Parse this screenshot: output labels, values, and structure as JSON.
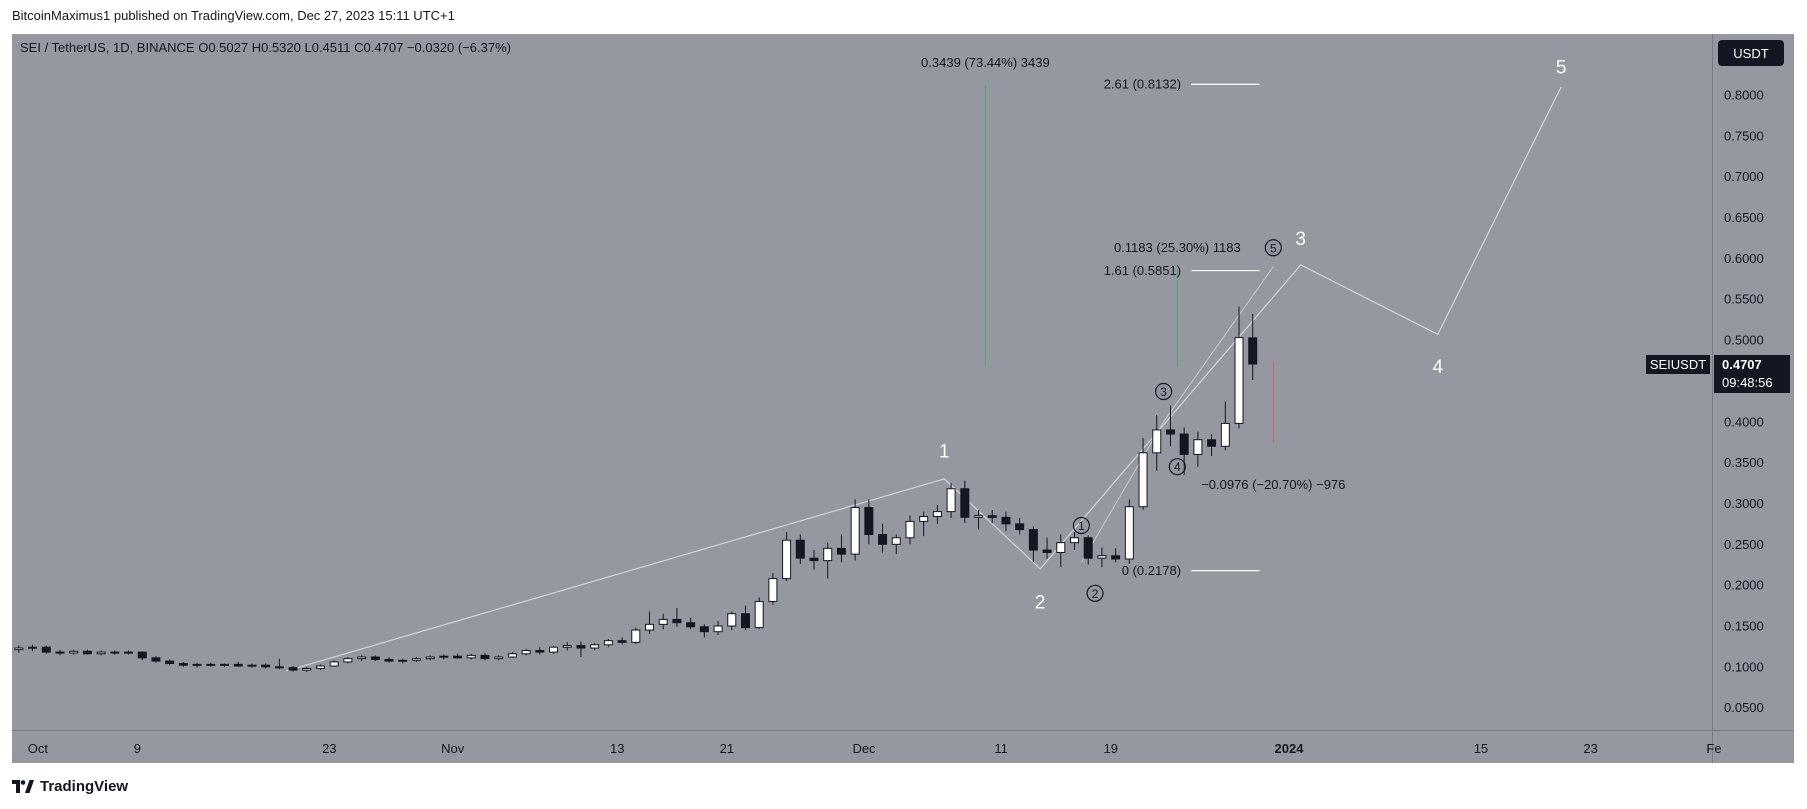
{
  "header": {
    "published_line": "BitcoinMaximus1 published on TradingView.com, Dec 27, 2023 15:11 UTC+1"
  },
  "footer": {
    "brand": "TradingView"
  },
  "colors": {
    "plot_bg": "#9598a1",
    "axis_bg": "#9598a1",
    "up_body": "#ffffff",
    "down_body": "#131722",
    "wick": "#131722",
    "wave_line": "#d1d4dc",
    "label_white": "#ffffff",
    "green_line": "#4caf50",
    "red_line": "#ef5350"
  },
  "chart_data": {
    "type": "candlestick",
    "title": "SEI / TetherUS, 1D, BINANCE",
    "symbol": "SEIUSDT",
    "currency": "USDT",
    "ohlc_legend": {
      "o_label": "O",
      "o": "0.5027",
      "h_label": "H",
      "h": "0.5320",
      "l_label": "L",
      "l": "0.4511",
      "c_label": "C",
      "c": "0.4707",
      "change": "−0.0320 (−6.37%)"
    },
    "last_price": "0.4707",
    "countdown": "09:48:56",
    "y_axis": {
      "min": 0.03,
      "max": 0.86,
      "ticks": [
        "0.8000",
        "0.7500",
        "0.7000",
        "0.6500",
        "0.6000",
        "0.5500",
        "0.5000",
        "0.4000",
        "0.3500",
        "0.3000",
        "0.2500",
        "0.2000",
        "0.1500",
        "0.1000",
        "0.0500"
      ]
    },
    "x_axis": {
      "start": "2023-09-30",
      "end": "2024-02-01",
      "ticks": [
        {
          "label": "Oct",
          "date": "2023-10-01"
        },
        {
          "label": "9",
          "date": "2023-10-09"
        },
        {
          "label": "23",
          "date": "2023-10-23"
        },
        {
          "label": "Nov",
          "date": "2023-11-01"
        },
        {
          "label": "13",
          "date": "2023-11-13"
        },
        {
          "label": "21",
          "date": "2023-11-21"
        },
        {
          "label": "Dec",
          "date": "2023-12-01"
        },
        {
          "label": "11",
          "date": "2023-12-11"
        },
        {
          "label": "19",
          "date": "2023-12-19"
        },
        {
          "label": "2024",
          "date": "2024-01-01",
          "bold": true
        },
        {
          "label": "15",
          "date": "2024-01-15"
        },
        {
          "label": "23",
          "date": "2024-01-23"
        },
        {
          "label": "Fe",
          "date": "2024-02-01"
        }
      ]
    },
    "candles": [
      {
        "d": "2023-09-30",
        "o": 0.121,
        "h": 0.126,
        "l": 0.117,
        "c": 0.123
      },
      {
        "d": "2023-10-01",
        "o": 0.123,
        "h": 0.127,
        "l": 0.119,
        "c": 0.124
      },
      {
        "d": "2023-10-02",
        "o": 0.124,
        "h": 0.126,
        "l": 0.116,
        "c": 0.118
      },
      {
        "d": "2023-10-03",
        "o": 0.118,
        "h": 0.121,
        "l": 0.114,
        "c": 0.117
      },
      {
        "d": "2023-10-04",
        "o": 0.117,
        "h": 0.121,
        "l": 0.115,
        "c": 0.119
      },
      {
        "d": "2023-10-05",
        "o": 0.119,
        "h": 0.121,
        "l": 0.115,
        "c": 0.116
      },
      {
        "d": "2023-10-06",
        "o": 0.116,
        "h": 0.12,
        "l": 0.114,
        "c": 0.118
      },
      {
        "d": "2023-10-07",
        "o": 0.118,
        "h": 0.12,
        "l": 0.115,
        "c": 0.117
      },
      {
        "d": "2023-10-08",
        "o": 0.117,
        "h": 0.12,
        "l": 0.115,
        "c": 0.118
      },
      {
        "d": "2023-10-09",
        "o": 0.118,
        "h": 0.119,
        "l": 0.108,
        "c": 0.111
      },
      {
        "d": "2023-10-10",
        "o": 0.111,
        "h": 0.113,
        "l": 0.105,
        "c": 0.107
      },
      {
        "d": "2023-10-11",
        "o": 0.107,
        "h": 0.109,
        "l": 0.102,
        "c": 0.104
      },
      {
        "d": "2023-10-12",
        "o": 0.104,
        "h": 0.106,
        "l": 0.1,
        "c": 0.102
      },
      {
        "d": "2023-10-13",
        "o": 0.102,
        "h": 0.105,
        "l": 0.099,
        "c": 0.103
      },
      {
        "d": "2023-10-14",
        "o": 0.103,
        "h": 0.105,
        "l": 0.1,
        "c": 0.102
      },
      {
        "d": "2023-10-15",
        "o": 0.102,
        "h": 0.104,
        "l": 0.1,
        "c": 0.103
      },
      {
        "d": "2023-10-16",
        "o": 0.103,
        "h": 0.106,
        "l": 0.1,
        "c": 0.101
      },
      {
        "d": "2023-10-17",
        "o": 0.101,
        "h": 0.104,
        "l": 0.099,
        "c": 0.102
      },
      {
        "d": "2023-10-18",
        "o": 0.102,
        "h": 0.104,
        "l": 0.098,
        "c": 0.1
      },
      {
        "d": "2023-10-19",
        "o": 0.1,
        "h": 0.11,
        "l": 0.097,
        "c": 0.099
      },
      {
        "d": "2023-10-20",
        "o": 0.099,
        "h": 0.101,
        "l": 0.094,
        "c": 0.096
      },
      {
        "d": "2023-10-21",
        "o": 0.096,
        "h": 0.1,
        "l": 0.094,
        "c": 0.098
      },
      {
        "d": "2023-10-22",
        "o": 0.098,
        "h": 0.103,
        "l": 0.096,
        "c": 0.101
      },
      {
        "d": "2023-10-23",
        "o": 0.101,
        "h": 0.108,
        "l": 0.1,
        "c": 0.106
      },
      {
        "d": "2023-10-24",
        "o": 0.106,
        "h": 0.112,
        "l": 0.104,
        "c": 0.11
      },
      {
        "d": "2023-10-25",
        "o": 0.11,
        "h": 0.114,
        "l": 0.107,
        "c": 0.112
      },
      {
        "d": "2023-10-26",
        "o": 0.112,
        "h": 0.114,
        "l": 0.107,
        "c": 0.109
      },
      {
        "d": "2023-10-27",
        "o": 0.109,
        "h": 0.112,
        "l": 0.105,
        "c": 0.107
      },
      {
        "d": "2023-10-28",
        "o": 0.107,
        "h": 0.11,
        "l": 0.104,
        "c": 0.108
      },
      {
        "d": "2023-10-29",
        "o": 0.108,
        "h": 0.112,
        "l": 0.106,
        "c": 0.11
      },
      {
        "d": "2023-10-30",
        "o": 0.11,
        "h": 0.114,
        "l": 0.108,
        "c": 0.112
      },
      {
        "d": "2023-10-31",
        "o": 0.112,
        "h": 0.115,
        "l": 0.109,
        "c": 0.113
      },
      {
        "d": "2023-11-01",
        "o": 0.113,
        "h": 0.116,
        "l": 0.11,
        "c": 0.111
      },
      {
        "d": "2023-11-02",
        "o": 0.111,
        "h": 0.116,
        "l": 0.109,
        "c": 0.114
      },
      {
        "d": "2023-11-03",
        "o": 0.114,
        "h": 0.117,
        "l": 0.108,
        "c": 0.11
      },
      {
        "d": "2023-11-04",
        "o": 0.11,
        "h": 0.114,
        "l": 0.108,
        "c": 0.112
      },
      {
        "d": "2023-11-05",
        "o": 0.112,
        "h": 0.118,
        "l": 0.111,
        "c": 0.116
      },
      {
        "d": "2023-11-06",
        "o": 0.116,
        "h": 0.122,
        "l": 0.114,
        "c": 0.12
      },
      {
        "d": "2023-11-07",
        "o": 0.12,
        "h": 0.124,
        "l": 0.115,
        "c": 0.118
      },
      {
        "d": "2023-11-08",
        "o": 0.118,
        "h": 0.126,
        "l": 0.116,
        "c": 0.124
      },
      {
        "d": "2023-11-09",
        "o": 0.124,
        "h": 0.13,
        "l": 0.12,
        "c": 0.126
      },
      {
        "d": "2023-11-10",
        "o": 0.126,
        "h": 0.131,
        "l": 0.112,
        "c": 0.123
      },
      {
        "d": "2023-11-11",
        "o": 0.123,
        "h": 0.129,
        "l": 0.12,
        "c": 0.127
      },
      {
        "d": "2023-11-12",
        "o": 0.127,
        "h": 0.134,
        "l": 0.124,
        "c": 0.132
      },
      {
        "d": "2023-11-13",
        "o": 0.132,
        "h": 0.136,
        "l": 0.127,
        "c": 0.13
      },
      {
        "d": "2023-11-14",
        "o": 0.13,
        "h": 0.148,
        "l": 0.128,
        "c": 0.145
      },
      {
        "d": "2023-11-15",
        "o": 0.145,
        "h": 0.168,
        "l": 0.14,
        "c": 0.152
      },
      {
        "d": "2023-11-16",
        "o": 0.152,
        "h": 0.165,
        "l": 0.146,
        "c": 0.158
      },
      {
        "d": "2023-11-17",
        "o": 0.158,
        "h": 0.172,
        "l": 0.149,
        "c": 0.154
      },
      {
        "d": "2023-11-18",
        "o": 0.154,
        "h": 0.16,
        "l": 0.146,
        "c": 0.149
      },
      {
        "d": "2023-11-19",
        "o": 0.149,
        "h": 0.152,
        "l": 0.136,
        "c": 0.143
      },
      {
        "d": "2023-11-20",
        "o": 0.143,
        "h": 0.156,
        "l": 0.139,
        "c": 0.15
      },
      {
        "d": "2023-11-21",
        "o": 0.15,
        "h": 0.168,
        "l": 0.145,
        "c": 0.165
      },
      {
        "d": "2023-11-22",
        "o": 0.165,
        "h": 0.175,
        "l": 0.145,
        "c": 0.148
      },
      {
        "d": "2023-11-23",
        "o": 0.148,
        "h": 0.185,
        "l": 0.146,
        "c": 0.18
      },
      {
        "d": "2023-11-24",
        "o": 0.18,
        "h": 0.215,
        "l": 0.176,
        "c": 0.208
      },
      {
        "d": "2023-11-25",
        "o": 0.208,
        "h": 0.265,
        "l": 0.205,
        "c": 0.255
      },
      {
        "d": "2023-11-26",
        "o": 0.255,
        "h": 0.262,
        "l": 0.226,
        "c": 0.233
      },
      {
        "d": "2023-11-27",
        "o": 0.233,
        "h": 0.243,
        "l": 0.219,
        "c": 0.23
      },
      {
        "d": "2023-11-28",
        "o": 0.23,
        "h": 0.252,
        "l": 0.208,
        "c": 0.245
      },
      {
        "d": "2023-11-29",
        "o": 0.245,
        "h": 0.262,
        "l": 0.228,
        "c": 0.238
      },
      {
        "d": "2023-11-30",
        "o": 0.238,
        "h": 0.305,
        "l": 0.23,
        "c": 0.295
      },
      {
        "d": "2023-12-01",
        "o": 0.295,
        "h": 0.305,
        "l": 0.25,
        "c": 0.262
      },
      {
        "d": "2023-12-02",
        "o": 0.262,
        "h": 0.275,
        "l": 0.24,
        "c": 0.25
      },
      {
        "d": "2023-12-03",
        "o": 0.25,
        "h": 0.262,
        "l": 0.238,
        "c": 0.258
      },
      {
        "d": "2023-12-04",
        "o": 0.258,
        "h": 0.285,
        "l": 0.25,
        "c": 0.278
      },
      {
        "d": "2023-12-05",
        "o": 0.278,
        "h": 0.29,
        "l": 0.26,
        "c": 0.284
      },
      {
        "d": "2023-12-06",
        "o": 0.284,
        "h": 0.298,
        "l": 0.275,
        "c": 0.29
      },
      {
        "d": "2023-12-07",
        "o": 0.29,
        "h": 0.325,
        "l": 0.282,
        "c": 0.318
      },
      {
        "d": "2023-12-08",
        "o": 0.318,
        "h": 0.328,
        "l": 0.276,
        "c": 0.283
      },
      {
        "d": "2023-12-09",
        "o": 0.283,
        "h": 0.292,
        "l": 0.268,
        "c": 0.285
      },
      {
        "d": "2023-12-10",
        "o": 0.285,
        "h": 0.292,
        "l": 0.276,
        "c": 0.283
      },
      {
        "d": "2023-12-11",
        "o": 0.283,
        "h": 0.29,
        "l": 0.266,
        "c": 0.275
      },
      {
        "d": "2023-12-12",
        "o": 0.275,
        "h": 0.282,
        "l": 0.262,
        "c": 0.268
      },
      {
        "d": "2023-12-13",
        "o": 0.268,
        "h": 0.272,
        "l": 0.228,
        "c": 0.243
      },
      {
        "d": "2023-12-14",
        "o": 0.243,
        "h": 0.258,
        "l": 0.232,
        "c": 0.24
      },
      {
        "d": "2023-12-15",
        "o": 0.24,
        "h": 0.262,
        "l": 0.222,
        "c": 0.252
      },
      {
        "d": "2023-12-16",
        "o": 0.252,
        "h": 0.265,
        "l": 0.243,
        "c": 0.258
      },
      {
        "d": "2023-12-17",
        "o": 0.258,
        "h": 0.261,
        "l": 0.225,
        "c": 0.233
      },
      {
        "d": "2023-12-18",
        "o": 0.233,
        "h": 0.246,
        "l": 0.222,
        "c": 0.236
      },
      {
        "d": "2023-12-19",
        "o": 0.236,
        "h": 0.245,
        "l": 0.228,
        "c": 0.232
      },
      {
        "d": "2023-12-20",
        "o": 0.232,
        "h": 0.305,
        "l": 0.226,
        "c": 0.296
      },
      {
        "d": "2023-12-21",
        "o": 0.296,
        "h": 0.38,
        "l": 0.292,
        "c": 0.362
      },
      {
        "d": "2023-12-22",
        "o": 0.362,
        "h": 0.408,
        "l": 0.34,
        "c": 0.39
      },
      {
        "d": "2023-12-23",
        "o": 0.39,
        "h": 0.42,
        "l": 0.37,
        "c": 0.385
      },
      {
        "d": "2023-12-24",
        "o": 0.385,
        "h": 0.393,
        "l": 0.335,
        "c": 0.36
      },
      {
        "d": "2023-12-25",
        "o": 0.36,
        "h": 0.388,
        "l": 0.345,
        "c": 0.378
      },
      {
        "d": "2023-12-26",
        "o": 0.378,
        "h": 0.385,
        "l": 0.358,
        "c": 0.37
      },
      {
        "d": "2023-12-27",
        "o": 0.37,
        "h": 0.425,
        "l": 0.365,
        "c": 0.398
      },
      {
        "d": "2023-12-28",
        "o": 0.398,
        "h": 0.541,
        "l": 0.392,
        "c": 0.503
      },
      {
        "d": "2023-12-29",
        "o": 0.5027,
        "h": 0.532,
        "l": 0.4511,
        "c": 0.4707
      }
    ],
    "wave_line": [
      {
        "d": "2023-10-20",
        "v": 0.095
      },
      {
        "d": "2023-12-07",
        "v": 0.33
      },
      {
        "d": "2023-12-14",
        "v": 0.22
      },
      {
        "d": "2024-01-02",
        "v": 0.592
      },
      {
        "d": "2024-01-12",
        "v": 0.507
      },
      {
        "d": "2024-01-21",
        "v": 0.81
      }
    ],
    "subwave_line": [
      {
        "d": "2023-12-17",
        "v": 0.228
      },
      {
        "d": "2023-12-23",
        "v": 0.4
      },
      {
        "d": "2023-12-31",
        "v": 0.59
      }
    ],
    "wave_labels": [
      {
        "text": "1",
        "d": "2023-12-07",
        "v": 0.365,
        "style": "major"
      },
      {
        "text": "2",
        "d": "2023-12-14",
        "v": 0.18,
        "style": "major"
      },
      {
        "text": "3",
        "d": "2024-01-02",
        "v": 0.625,
        "style": "major"
      },
      {
        "text": "4",
        "d": "2024-01-12",
        "v": 0.468,
        "style": "major"
      },
      {
        "text": "5",
        "d": "2024-01-21",
        "v": 0.835,
        "style": "major"
      }
    ],
    "subwave_labels": [
      {
        "text": "1",
        "d": "2023-12-17",
        "v": 0.273
      },
      {
        "text": "2",
        "d": "2023-12-18",
        "v": 0.19
      },
      {
        "text": "3",
        "d": "2023-12-23",
        "v": 0.437
      },
      {
        "text": "4",
        "d": "2023-12-24",
        "v": 0.345
      },
      {
        "text": "5",
        "d": "2023-12-31",
        "v": 0.613
      }
    ],
    "fib_levels": [
      {
        "label": "2.61 (0.8132)",
        "value": 0.8132
      },
      {
        "label": "1.61 (0.5851)",
        "value": 0.5851
      },
      {
        "label": "0 (0.2178)",
        "value": 0.2178
      }
    ],
    "fib_x_range": {
      "start": "2023-12-25",
      "end": "2023-12-30"
    },
    "measures": [
      {
        "label": "0.3439 (73.44%) 3439",
        "x": "2023-12-10",
        "from": 0.4683,
        "to": 0.8122,
        "line_color": "green"
      },
      {
        "label": "0.1183 (25.30%) 1183",
        "x": "2023-12-24",
        "from": 0.4676,
        "to": 0.5859,
        "line_color": "green"
      },
      {
        "label": "−0.0976 (−20.70%) −976",
        "x": "2023-12-31",
        "from": 0.4716,
        "to": 0.374,
        "line_color": "red"
      }
    ]
  }
}
